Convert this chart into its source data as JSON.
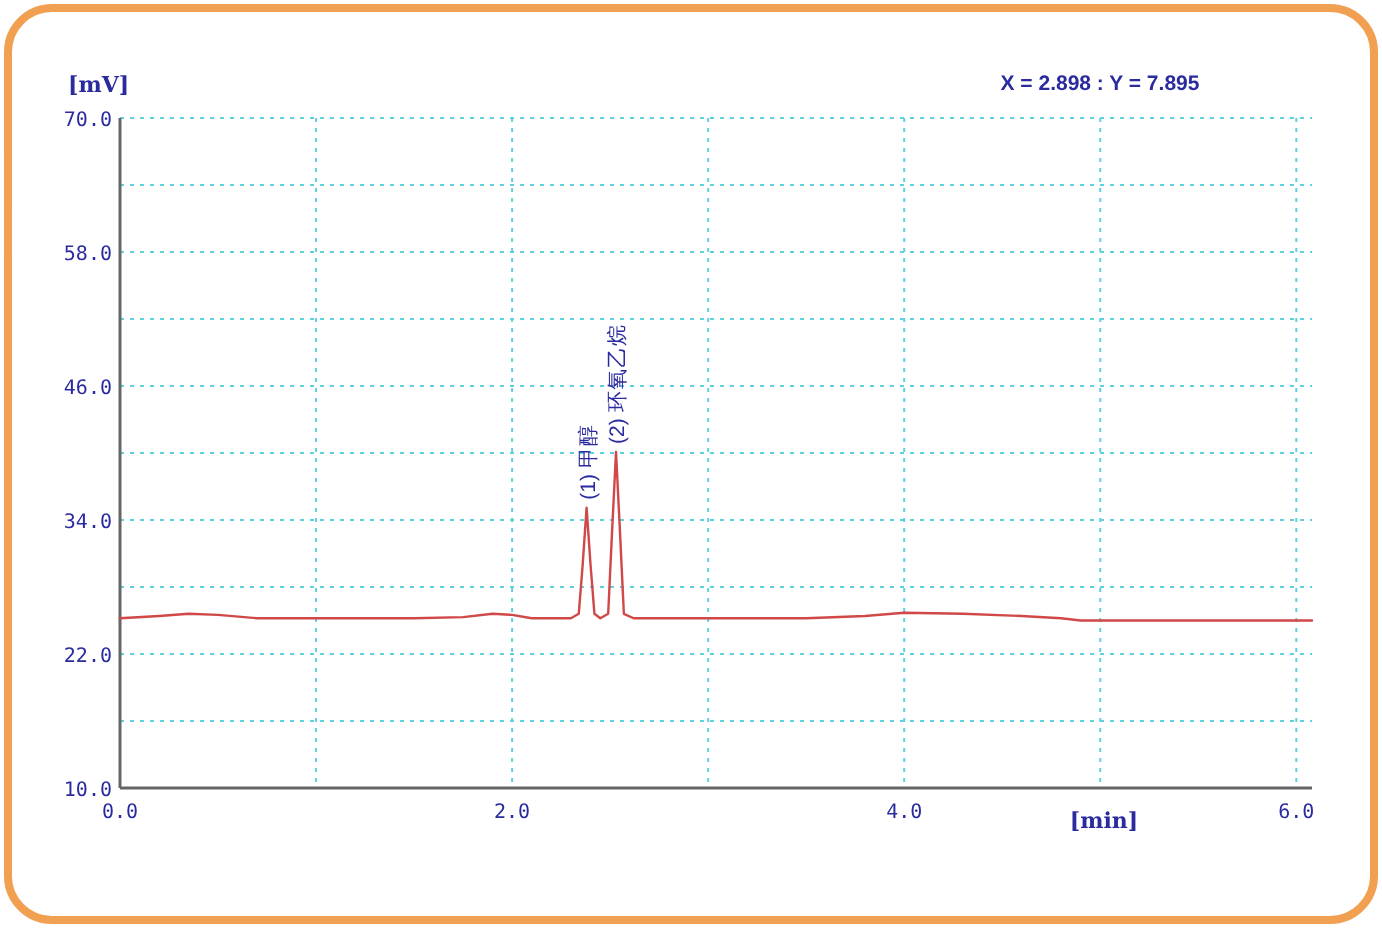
{
  "chart_data": {
    "type": "line",
    "xlabel": "[min]",
    "ylabel": "[mV]",
    "xlim": [
      0,
      6.08
    ],
    "ylim": [
      10,
      70
    ],
    "xticks": [
      {
        "value": 0,
        "label": "0.0"
      },
      {
        "value": 1,
        "label": null
      },
      {
        "value": 2,
        "label": "2.0"
      },
      {
        "value": 3,
        "label": null
      },
      {
        "value": 4,
        "label": "4.0"
      },
      {
        "value": 5,
        "label": null
      },
      {
        "value": 6,
        "label": "6.0"
      }
    ],
    "yticks": [
      {
        "value": 10,
        "label": "10.0"
      },
      {
        "value": 16,
        "label": null
      },
      {
        "value": 22,
        "label": "22.0"
      },
      {
        "value": 28,
        "label": null
      },
      {
        "value": 34,
        "label": "34.0"
      },
      {
        "value": 40,
        "label": null
      },
      {
        "value": 46,
        "label": "46.0"
      },
      {
        "value": 52,
        "label": null
      },
      {
        "value": 58,
        "label": "58.0"
      },
      {
        "value": 64,
        "label": null
      },
      {
        "value": 70,
        "label": "70.0"
      }
    ],
    "grid": true,
    "marker": "none",
    "line_style": "solid",
    "series": [
      {
        "color": "#d04848",
        "x": [
          0,
          0.2,
          0.35,
          0.5,
          0.7,
          1.0,
          1.5,
          1.75,
          1.9,
          2.0,
          2.1,
          2.3,
          2.34,
          2.36,
          2.38,
          2.4,
          2.42,
          2.45,
          2.49,
          2.51,
          2.53,
          2.55,
          2.57,
          2.62,
          2.8,
          3.0,
          3.5,
          3.8,
          4.0,
          4.3,
          4.6,
          4.8,
          4.9,
          5.0,
          5.5,
          6.08
        ],
        "values": [
          25.2,
          25.4,
          25.6,
          25.5,
          25.2,
          25.2,
          25.2,
          25.3,
          25.6,
          25.5,
          25.2,
          25.2,
          25.6,
          30.0,
          35.1,
          30.0,
          25.6,
          25.2,
          25.6,
          33.0,
          40.1,
          33.0,
          25.6,
          25.2,
          25.2,
          25.2,
          25.2,
          25.4,
          25.7,
          25.6,
          25.4,
          25.2,
          25.0,
          25.0,
          25.0,
          25.0
        ]
      }
    ],
    "annotations": [
      {
        "text": "(1) 甲醇",
        "x": 2.38,
        "y": 35.1
      },
      {
        "text": "(2) 环氧乙烷",
        "x": 2.53,
        "y": 40.1
      },
      "X = 2.898 : Y = 7.895"
    ]
  }
}
